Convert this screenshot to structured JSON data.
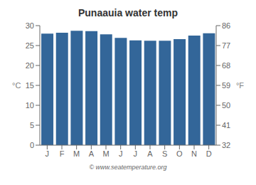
{
  "chart_data": {
    "type": "bar",
    "title": "Punaauia water temp",
    "categories": [
      "J",
      "F",
      "M",
      "A",
      "M",
      "J",
      "J",
      "A",
      "S",
      "O",
      "N",
      "D"
    ],
    "values": [
      28.0,
      28.2,
      28.7,
      28.6,
      27.8,
      26.9,
      26.3,
      26.2,
      26.2,
      26.6,
      27.5,
      28.1
    ],
    "color": "#336699",
    "ylim": [
      0,
      30
    ],
    "yticks": [
      0,
      5,
      10,
      15,
      20,
      25,
      30
    ],
    "y2lim": [
      32,
      86
    ],
    "y2ticks": [
      32,
      41,
      50,
      59,
      68,
      77,
      86
    ],
    "ylabel": "°C",
    "y2label": "°F",
    "annotation": "© www.seatemperature.org",
    "grid": false
  }
}
